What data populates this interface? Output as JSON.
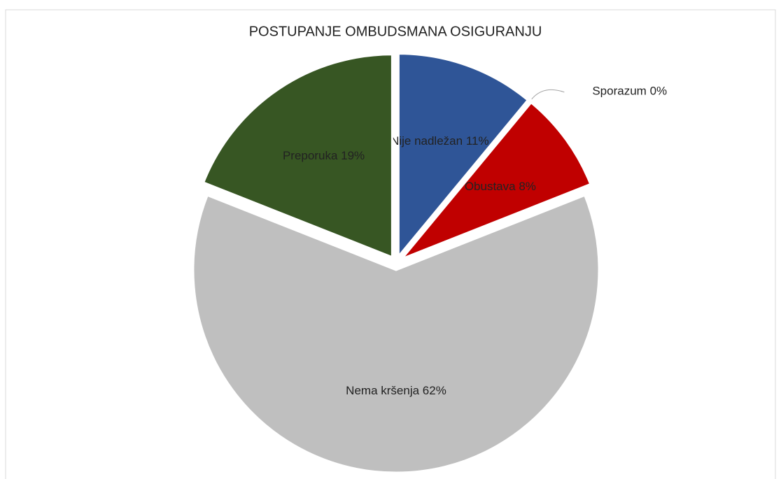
{
  "chart_data": {
    "type": "pie",
    "title": "POSTUPANJE OMBUDSMANA OSIGURANJU",
    "categories": [
      "Nije nadležan",
      "Sporazum",
      "Obustava",
      "Nema kršenja",
      "Preporuka"
    ],
    "values": [
      11,
      0,
      8,
      62,
      19
    ],
    "value_labels": [
      "11%",
      "0%",
      "8%",
      "62%",
      "19%"
    ],
    "colors": [
      "#2f5597",
      "#a5a5a5",
      "#c00000",
      "#bfbfbf",
      "#375623"
    ]
  }
}
